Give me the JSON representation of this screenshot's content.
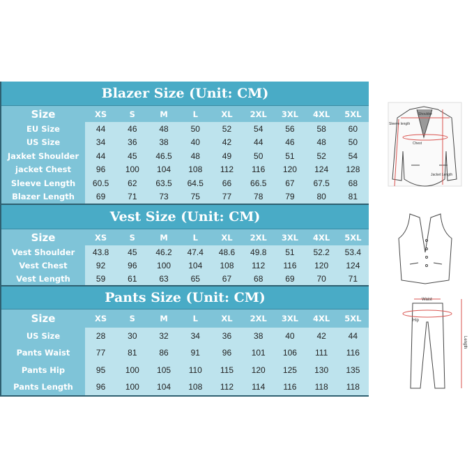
{
  "sizes": [
    "XS",
    "S",
    "M",
    "L",
    "XL",
    "2XL",
    "3XL",
    "4XL",
    "5XL"
  ],
  "size_label": "Size",
  "blazer": {
    "title": "Blazer Size (Unit: CM)",
    "rows": [
      {
        "label": "EU Size",
        "values": [
          "44",
          "46",
          "48",
          "50",
          "52",
          "54",
          "56",
          "58",
          "60"
        ]
      },
      {
        "label": "US Size",
        "values": [
          "34",
          "36",
          "38",
          "40",
          "42",
          "44",
          "46",
          "48",
          "50"
        ]
      },
      {
        "label": "Jaxket Shoulder",
        "values": [
          "44",
          "45",
          "46.5",
          "48",
          "49",
          "50",
          "51",
          "52",
          "54"
        ]
      },
      {
        "label": "jacket Chest",
        "values": [
          "96",
          "100",
          "104",
          "108",
          "112",
          "116",
          "120",
          "124",
          "128"
        ]
      },
      {
        "label": "Sleeve Length",
        "values": [
          "60.5",
          "62",
          "63.5",
          "64.5",
          "66",
          "66.5",
          "67",
          "67.5",
          "68"
        ]
      },
      {
        "label": "Blazer Length",
        "values": [
          "69",
          "71",
          "73",
          "75",
          "77",
          "78",
          "79",
          "80",
          "81"
        ]
      }
    ]
  },
  "vest": {
    "title": "Vest Size (Unit: CM)",
    "rows": [
      {
        "label": "Vest Shoulder",
        "values": [
          "43.8",
          "45",
          "46.2",
          "47.4",
          "48.6",
          "49.8",
          "51",
          "52.2",
          "53.4"
        ]
      },
      {
        "label": "Vest Chest",
        "values": [
          "92",
          "96",
          "100",
          "104",
          "108",
          "112",
          "116",
          "120",
          "124"
        ]
      },
      {
        "label": "Vest Length",
        "values": [
          "59",
          "61",
          "63",
          "65",
          "67",
          "68",
          "69",
          "70",
          "71"
        ]
      }
    ]
  },
  "pants": {
    "title": "Pants Size (Unit: CM)",
    "rows": [
      {
        "label": "US Size",
        "values": [
          "28",
          "30",
          "32",
          "34",
          "36",
          "38",
          "40",
          "42",
          "44"
        ]
      },
      {
        "label": "Pants Waist",
        "values": [
          "77",
          "81",
          "86",
          "91",
          "96",
          "101",
          "106",
          "111",
          "116"
        ]
      },
      {
        "label": "Pants Hip",
        "values": [
          "95",
          "100",
          "105",
          "110",
          "115",
          "120",
          "125",
          "130",
          "135"
        ]
      },
      {
        "label": "Pants Length",
        "values": [
          "96",
          "100",
          "104",
          "108",
          "112",
          "114",
          "116",
          "118",
          "118"
        ]
      }
    ]
  },
  "diagram_labels": {
    "shoulder": "Shoulder",
    "sleeve": "Sleeve length",
    "chest": "Chest",
    "jacket_length": "Jacket Length",
    "waist": "Waist",
    "hip": "Hip",
    "length": "Length"
  },
  "colors": {
    "title_bar": "#49abc6",
    "label_bg": "#7fc4d8",
    "cell_bg": "#bde3ed",
    "measure_line": "#d9534f"
  }
}
